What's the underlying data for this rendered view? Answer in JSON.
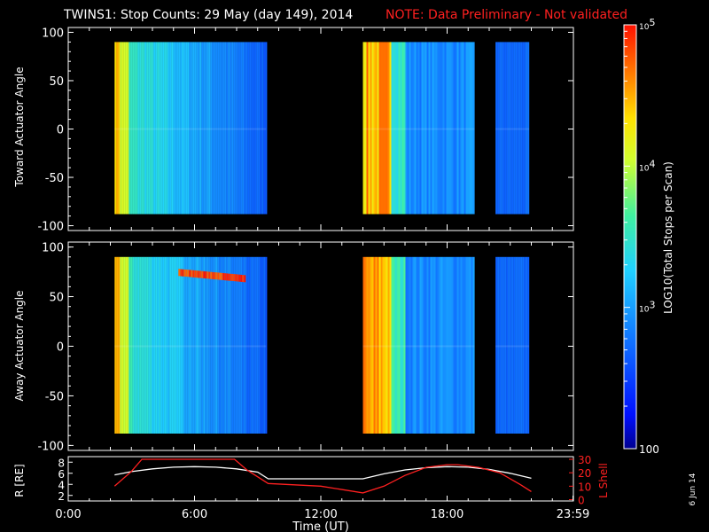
{
  "header": {
    "title": "TWINS1: Stop Counts: 29 May (day 149), 2014",
    "note": "NOTE: Data Preliminary - Not validated"
  },
  "colorbar": {
    "label": "LOG10(Total Stops per Scan)",
    "ticks": [
      "10^5",
      "10^4",
      "10^3",
      "100"
    ]
  },
  "side_date": "6 Jun 14",
  "chart_data": [
    {
      "type": "heatmap",
      "ylabel": "Toward Actuator Angle",
      "ylim": [
        -105,
        105
      ],
      "yticks": [
        100,
        50,
        0,
        -50,
        -100
      ],
      "x_range_hours": [
        0,
        24
      ],
      "data_segments_hours": [
        [
          2.2,
          9.4
        ],
        [
          14.0,
          19.3
        ],
        [
          20.3,
          21.9
        ]
      ],
      "angle_range": [
        -88,
        90
      ],
      "colormap": "log rainbow (blue=100 ... red=10^5)"
    },
    {
      "type": "heatmap",
      "ylabel": "Away Actuator Angle",
      "ylim": [
        -105,
        105
      ],
      "yticks": [
        100,
        50,
        0,
        -50,
        -100
      ],
      "x_range_hours": [
        0,
        24
      ],
      "data_segments_hours": [
        [
          2.2,
          9.4
        ],
        [
          14.0,
          19.3
        ],
        [
          20.3,
          21.9
        ]
      ],
      "angle_range": [
        -88,
        90
      ],
      "colormap": "log rainbow (blue=100 ... red=10^5)"
    },
    {
      "type": "line",
      "ylabel_left": "R [RE]",
      "ylabel_right": "L Shell",
      "xlabel": "Time (UT)",
      "xticks": [
        "0:00",
        "6:00",
        "12:00",
        "18:00",
        "23:59"
      ],
      "left_yticks": [
        2,
        4,
        6,
        8
      ],
      "right_yticks": [
        0,
        10,
        20,
        30
      ],
      "series": [
        {
          "color": "#ffffff",
          "axis": "left",
          "x_hours": [
            2.2,
            3.0,
            4.0,
            5.0,
            6.0,
            7.0,
            8.0,
            9.0,
            9.5,
            12,
            14.0,
            15.0,
            16.0,
            17.0,
            18.0,
            19.0,
            20.0,
            21.0,
            22.0
          ],
          "values": [
            5.7,
            6.3,
            6.8,
            7.1,
            7.2,
            7.1,
            6.8,
            6.2,
            5.0,
            5.0,
            5.0,
            5.9,
            6.6,
            7.0,
            7.2,
            7.1,
            6.7,
            6.0,
            5.1
          ]
        },
        {
          "color": "#ff2020",
          "axis": "right",
          "x_hours": [
            2.2,
            3.0,
            3.5,
            7.9,
            8.5,
            9.5,
            12.0,
            14.0,
            15.0,
            16.0,
            17.0,
            18.0,
            18.5,
            19.5,
            20.5,
            21.5,
            22.0
          ],
          "values": [
            10,
            21,
            30,
            30,
            22,
            12,
            10,
            5,
            10,
            18,
            24,
            26,
            26,
            24,
            20,
            11,
            6
          ]
        }
      ]
    }
  ]
}
